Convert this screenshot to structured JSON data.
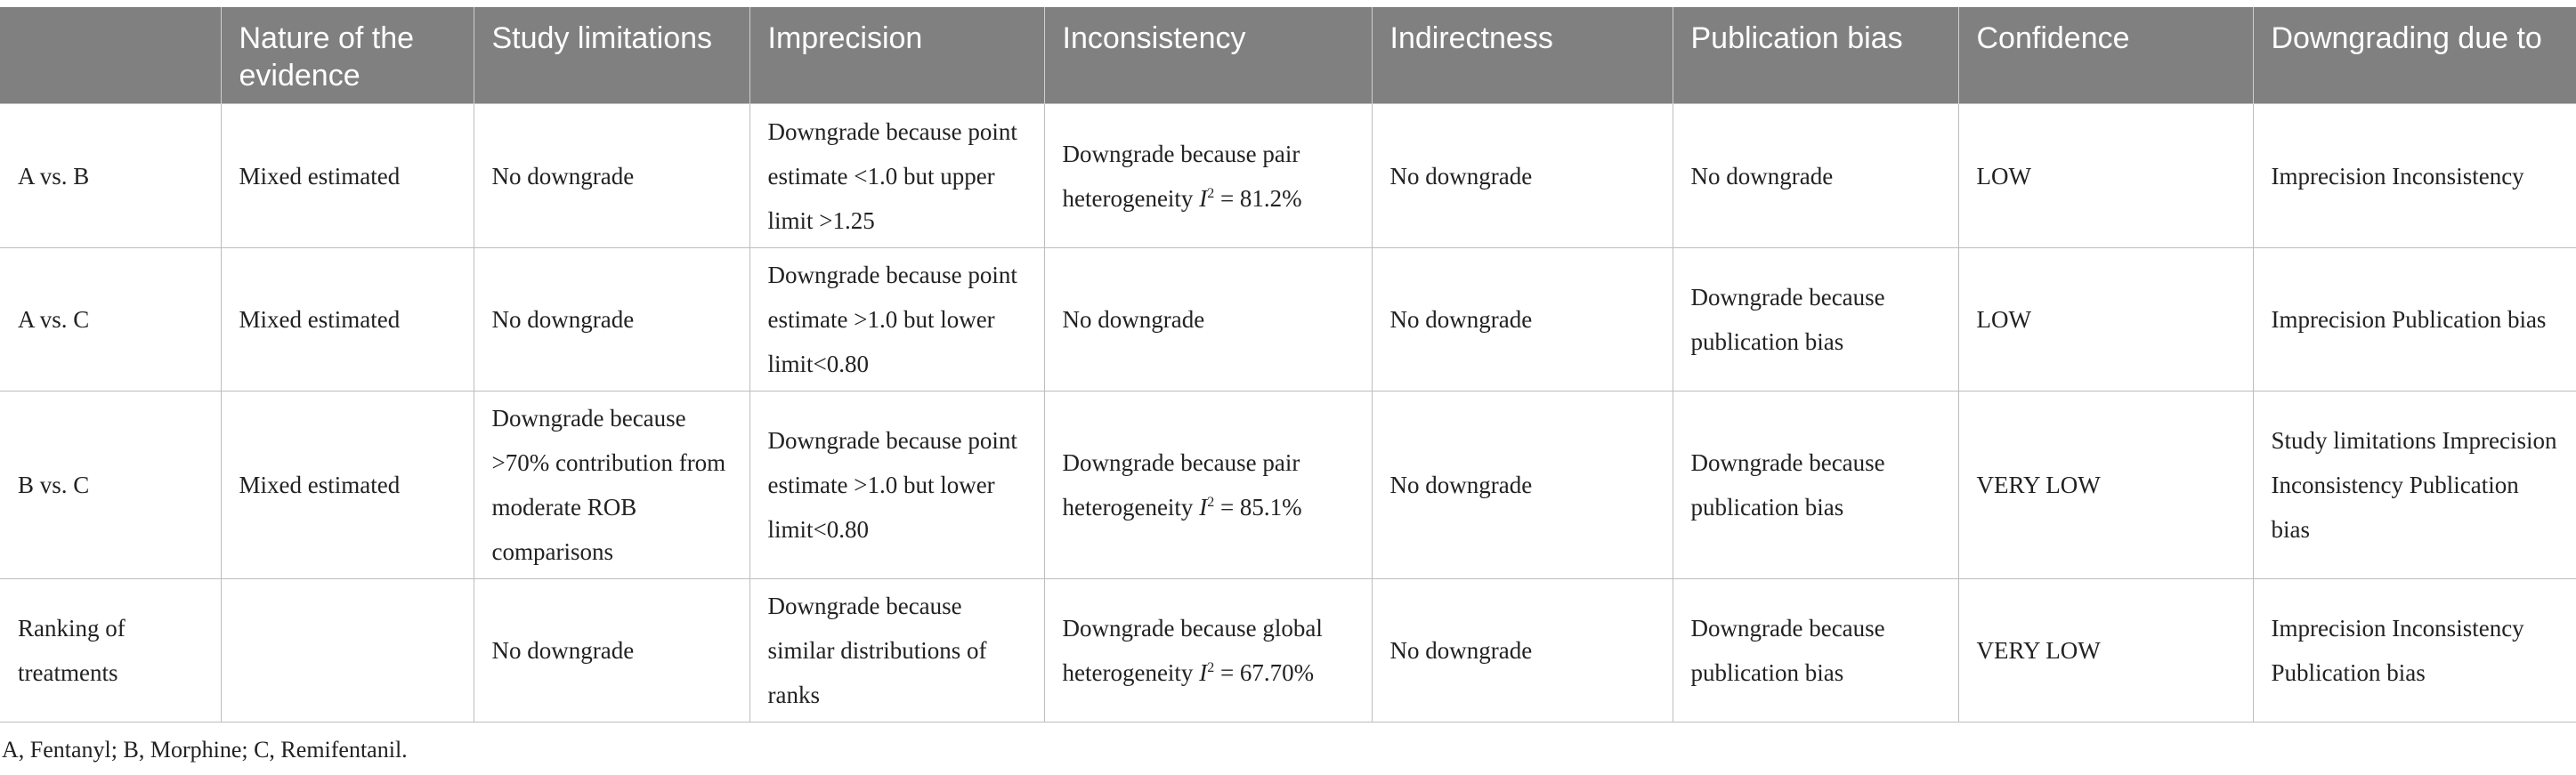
{
  "headers": [
    "",
    "Nature of the evidence",
    "Study limitations",
    "Imprecision",
    "Inconsistency",
    "Indirectness",
    "Publication bias",
    "Confidence",
    "Downgrading due to"
  ],
  "rows": [
    {
      "comparison": "A vs. B",
      "nature": "Mixed estimated",
      "study_limitations": "No downgrade",
      "imprecision": "Downgrade because point estimate <1.0 but upper limit >1.25",
      "inconsistency_text": "Downgrade because pair heterogeneity",
      "inconsistency_i": "I",
      "inconsistency_sup": "2",
      "inconsistency_value": " = 81.2%",
      "indirectness": "No downgrade",
      "publication_bias": "No downgrade",
      "confidence": "LOW",
      "downgrading": "Imprecision Inconsistency"
    },
    {
      "comparison": "A vs. C",
      "nature": "Mixed estimated",
      "study_limitations": "No downgrade",
      "imprecision": "Downgrade because point estimate >1.0 but lower limit<0.80",
      "inconsistency_text": "No downgrade",
      "indirectness": "No downgrade",
      "publication_bias": "Downgrade because publication bias",
      "confidence": "LOW",
      "downgrading": "Imprecision Publication bias"
    },
    {
      "comparison": "B vs. C",
      "nature": "Mixed estimated",
      "study_limitations": "Downgrade because >70% contribution from moderate ROB comparisons",
      "imprecision": "Downgrade because point estimate >1.0 but lower limit<0.80",
      "inconsistency_text": "Downgrade because pair heterogeneity",
      "inconsistency_i": "I",
      "inconsistency_sup": "2",
      "inconsistency_value": " = 85.1%",
      "indirectness": "No downgrade",
      "publication_bias": "Downgrade because publication bias",
      "confidence": "VERY LOW",
      "downgrading": "Study limitations Imprecision Inconsistency Publication bias"
    },
    {
      "comparison": "Ranking of treatments",
      "nature": "",
      "study_limitations": "No downgrade",
      "imprecision": "Downgrade because similar distributions of ranks",
      "inconsistency_text": "Downgrade because global heterogeneity",
      "inconsistency_i": "I",
      "inconsistency_sup": "2",
      "inconsistency_value": " = 67.70%",
      "indirectness": "No downgrade",
      "publication_bias": "Downgrade because publication bias",
      "confidence": "VERY LOW",
      "downgrading": "Imprecision Inconsistency Publication bias"
    }
  ],
  "footnote": "A, Fentanyl; B, Morphine; C, Remifentanil."
}
